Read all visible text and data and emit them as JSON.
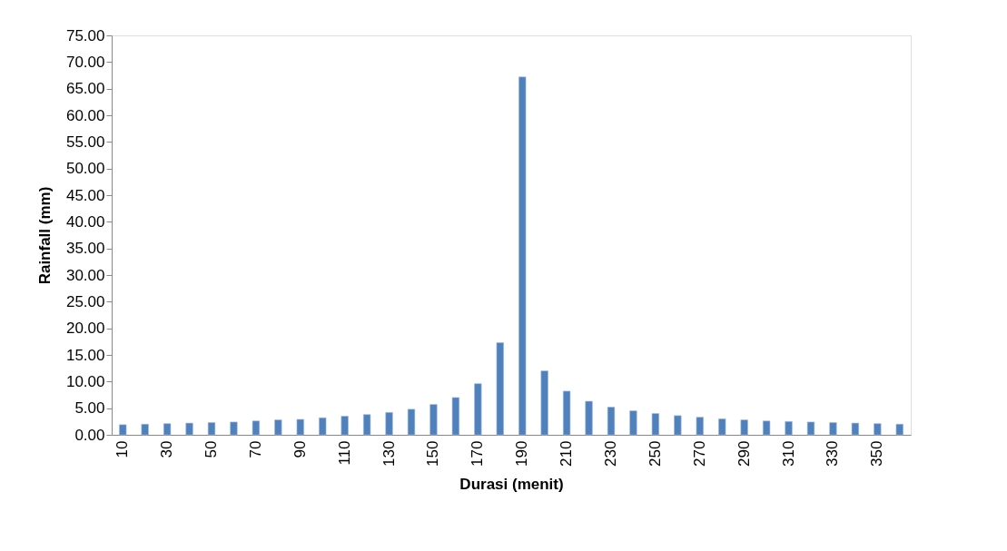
{
  "chart_data": {
    "type": "bar",
    "xlabel": "Durasi (menit)",
    "ylabel": "Rainfall (mm)",
    "categories": [
      "10",
      null,
      "30",
      null,
      "50",
      null,
      "70",
      null,
      "90",
      null,
      "110",
      null,
      "130",
      null,
      "150",
      null,
      "170",
      null,
      "190",
      null,
      "210",
      null,
      "230",
      null,
      "250",
      null,
      "270",
      null,
      "290",
      null,
      "310",
      null,
      "330",
      null,
      "350",
      null
    ],
    "values": [
      1.9,
      2.0,
      2.1,
      2.2,
      2.3,
      2.4,
      2.6,
      2.8,
      2.9,
      3.2,
      3.5,
      3.8,
      4.2,
      4.8,
      5.7,
      7.0,
      9.6,
      17.3,
      67.2,
      12.0,
      8.2,
      6.3,
      5.2,
      4.5,
      4.0,
      3.6,
      3.3,
      3.0,
      2.8,
      2.6,
      2.5,
      2.4,
      2.3,
      2.2,
      2.1,
      2.0
    ],
    "color": "#4f81bd",
    "ylim": [
      0,
      75
    ],
    "yticks": [
      {
        "value": 0,
        "label": "0.00"
      },
      {
        "value": 5,
        "label": "5.00"
      },
      {
        "value": 10,
        "label": "10.00"
      },
      {
        "value": 15,
        "label": "15.00"
      },
      {
        "value": 20,
        "label": "20.00"
      },
      {
        "value": 25,
        "label": "25.00"
      },
      {
        "value": 30,
        "label": "30.00"
      },
      {
        "value": 35,
        "label": "35.00"
      },
      {
        "value": 40,
        "label": "40.00"
      },
      {
        "value": 45,
        "label": "45.00"
      },
      {
        "value": 50,
        "label": "50.00"
      },
      {
        "value": 55,
        "label": "55.00"
      },
      {
        "value": 60,
        "label": "60.00"
      },
      {
        "value": 65,
        "label": "65.00"
      },
      {
        "value": 70,
        "label": "70.00"
      },
      {
        "value": 75,
        "label": "75.00"
      }
    ],
    "grid": false
  }
}
